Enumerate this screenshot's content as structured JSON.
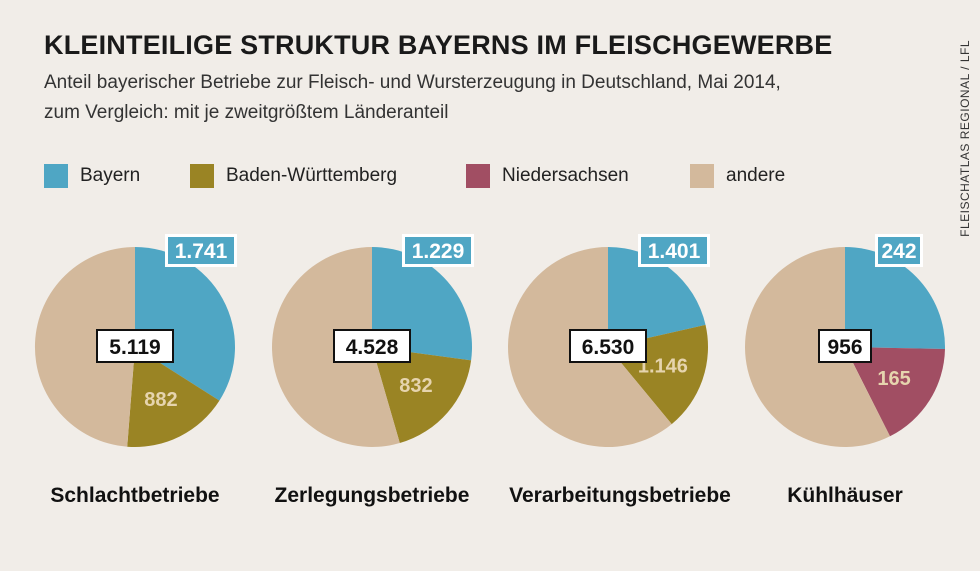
{
  "title": "KLEINTEILIGE STRUKTUR BAYERNS IM FLEISCHGEWERBE",
  "subtitle_line1": "Anteil bayerischer Betriebe zur Fleisch- und Wursterzeugung in Deutschland, Mai 2014,",
  "subtitle_line2": "zum Vergleich: mit je zweitgrößtem Länderanteil",
  "source": "FLEISCHATLAS REGIONAL / LFL",
  "colors": {
    "Bayern": "#4fa6c4",
    "Baden-Württemberg": "#9a8424",
    "Niedersachsen": "#a14e63",
    "andere": "#d3b99c"
  },
  "legend": [
    {
      "label": "Bayern",
      "color": "#4fa6c4"
    },
    {
      "label": "Baden-Württemberg",
      "color": "#9a8424"
    },
    {
      "label": "Niedersachsen",
      "color": "#a14e63"
    },
    {
      "label": "andere",
      "color": "#d3b99c"
    }
  ],
  "chart_data": [
    {
      "type": "pie",
      "title": "Schlachtbetriebe",
      "total_label": "5.119",
      "total": 5119,
      "slices": [
        {
          "name": "Bayern",
          "value": 1741,
          "label": "1.741"
        },
        {
          "name": "Baden-Württemberg",
          "value": 882,
          "label": "882"
        },
        {
          "name": "andere",
          "value": 2496,
          "label": ""
        }
      ]
    },
    {
      "type": "pie",
      "title": "Zerlegungsbetriebe",
      "total_label": "4.528",
      "total": 4528,
      "slices": [
        {
          "name": "Bayern",
          "value": 1229,
          "label": "1.229"
        },
        {
          "name": "Baden-Württemberg",
          "value": 832,
          "label": "832"
        },
        {
          "name": "andere",
          "value": 2467,
          "label": ""
        }
      ]
    },
    {
      "type": "pie",
      "title": "Verarbeitungsbetriebe",
      "total_label": "6.530",
      "total": 6530,
      "slices": [
        {
          "name": "Bayern",
          "value": 1401,
          "label": "1.401"
        },
        {
          "name": "Baden-Württemberg",
          "value": 1146,
          "label": "1.146"
        },
        {
          "name": "andere",
          "value": 3983,
          "label": ""
        }
      ]
    },
    {
      "type": "pie",
      "title": "Kühlhäuser",
      "total_label": "956",
      "total": 956,
      "slices": [
        {
          "name": "Bayern",
          "value": 242,
          "label": "242"
        },
        {
          "name": "Niedersachsen",
          "value": 165,
          "label": "165"
        },
        {
          "name": "andere",
          "value": 549,
          "label": ""
        }
      ]
    }
  ]
}
